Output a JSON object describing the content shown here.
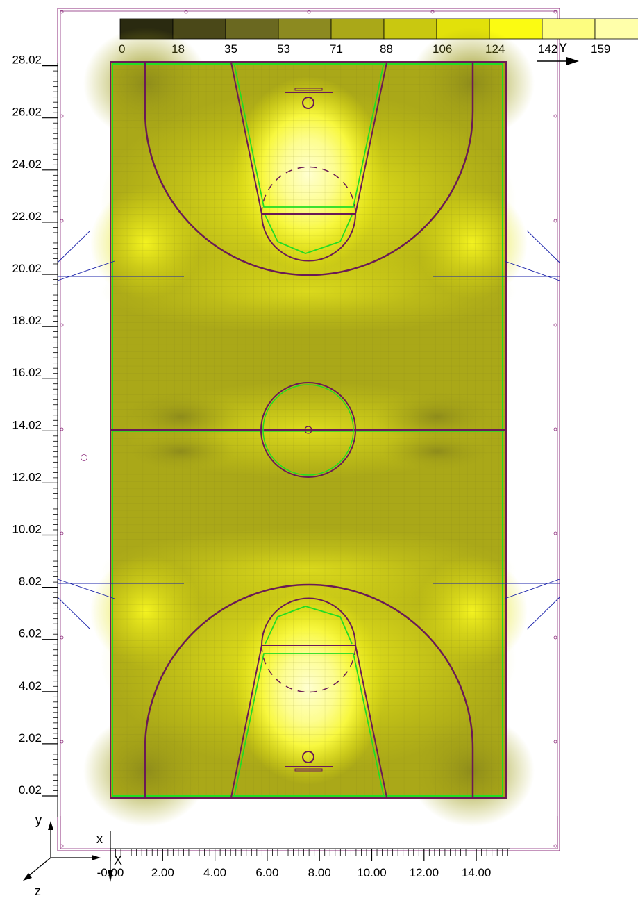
{
  "legend": {
    "ticks": [
      "0",
      "18",
      "35",
      "53",
      "71",
      "88",
      "106",
      "124",
      "142",
      "159"
    ],
    "colors": [
      "#2a2a10",
      "#4a4818",
      "#6a6820",
      "#8c8a20",
      "#aaa818",
      "#c9c810",
      "#e2e10a",
      "#fbfb12",
      "#fdfd80",
      "#ffffaa"
    ],
    "axis_name": "Y"
  },
  "y_axis": {
    "labels": [
      "0.02",
      "2.02",
      "4.02",
      "6.02",
      "8.02",
      "10.02",
      "12.02",
      "14.02",
      "16.02",
      "18.02",
      "20.02",
      "22.02",
      "24.02",
      "26.02",
      "28.02"
    ]
  },
  "x_axis": {
    "labels": [
      "-0.00",
      "2.00",
      "4.00",
      "6.00",
      "8.00",
      "10.00",
      "12.00",
      "14.00"
    ]
  },
  "triad": {
    "x": "x",
    "y": "y",
    "z": "z",
    "X": "X"
  },
  "colors": {
    "frame": "#8b2a7a",
    "court_line": "#6a1a55",
    "green_line": "#22dd22",
    "light_line": "#1a22aa"
  }
}
